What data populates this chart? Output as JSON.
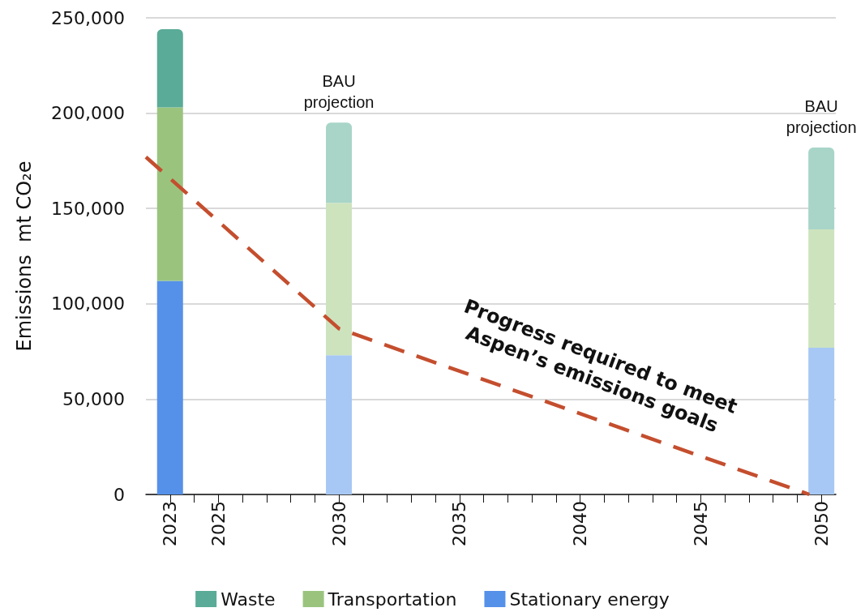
{
  "chart_data": {
    "type": "bar",
    "stacked": true,
    "ylabel": "Emissions  mt CO₂e",
    "x": [
      2023,
      2030,
      2050
    ],
    "series": [
      {
        "name": "Stationary energy",
        "color": "#5591e8",
        "colors": [
          "#5591e8",
          "#a7c8f5",
          "#a7c8f5"
        ],
        "values": [
          112000,
          73000,
          77000
        ]
      },
      {
        "name": "Transportation",
        "color": "#9ac47e",
        "colors": [
          "#9ac47e",
          "#cde3be",
          "#cde3be"
        ],
        "values": [
          91000,
          80000,
          62000
        ]
      },
      {
        "name": "Waste",
        "color": "#5aab97",
        "colors": [
          "#5aab97",
          "#a8d5c8",
          "#a8d5c8"
        ],
        "values": [
          41000,
          42000,
          43000
        ]
      },
      {
        "type": "line",
        "color": "#c44e2e",
        "line_style": "dashed",
        "marker": "none",
        "x": [
          2022,
          2030,
          2049.5
        ],
        "values": [
          177000,
          87000,
          0
        ]
      }
    ],
    "xlim": [
      2022,
      2050.6
    ],
    "xticks": [
      {
        "value": 2023,
        "label": "2023"
      },
      {
        "value": 2024,
        "label": null
      },
      {
        "value": 2025,
        "label": "2025"
      },
      {
        "value": 2026,
        "label": null
      },
      {
        "value": 2027,
        "label": null
      },
      {
        "value": 2028,
        "label": null
      },
      {
        "value": 2029,
        "label": null
      },
      {
        "value": 2030,
        "label": "2030"
      },
      {
        "value": 2031,
        "label": null
      },
      {
        "value": 2032,
        "label": null
      },
      {
        "value": 2033,
        "label": null
      },
      {
        "value": 2034,
        "label": null
      },
      {
        "value": 2035,
        "label": "2035"
      },
      {
        "value": 2036,
        "label": null
      },
      {
        "value": 2037,
        "label": null
      },
      {
        "value": 2038,
        "label": null
      },
      {
        "value": 2039,
        "label": null
      },
      {
        "value": 2040,
        "label": "2040"
      },
      {
        "value": 2041,
        "label": null
      },
      {
        "value": 2042,
        "label": null
      },
      {
        "value": 2043,
        "label": null
      },
      {
        "value": 2044,
        "label": null
      },
      {
        "value": 2045,
        "label": "2045"
      },
      {
        "value": 2046,
        "label": null
      },
      {
        "value": 2047,
        "label": null
      },
      {
        "value": 2048,
        "label": null
      },
      {
        "value": 2049,
        "label": null
      },
      {
        "value": 2050,
        "label": "2050"
      }
    ],
    "ylim": [
      0,
      250000
    ],
    "yticks": [
      {
        "value": 0,
        "label": "0"
      },
      {
        "value": 50000,
        "label": "50,000"
      },
      {
        "value": 100000,
        "label": "100,000"
      },
      {
        "value": 150000,
        "label": "150,000"
      },
      {
        "value": 200000,
        "label": "200,000"
      },
      {
        "value": 250000,
        "label": "250,000"
      }
    ],
    "grid": "y",
    "legend": "bottom",
    "annotations": [
      "BAU projection",
      "BAU projection",
      {
        "text": "Progress required to meet Aspen’s emissions goals",
        "x": 2040,
        "y": 43000
      }
    ]
  }
}
